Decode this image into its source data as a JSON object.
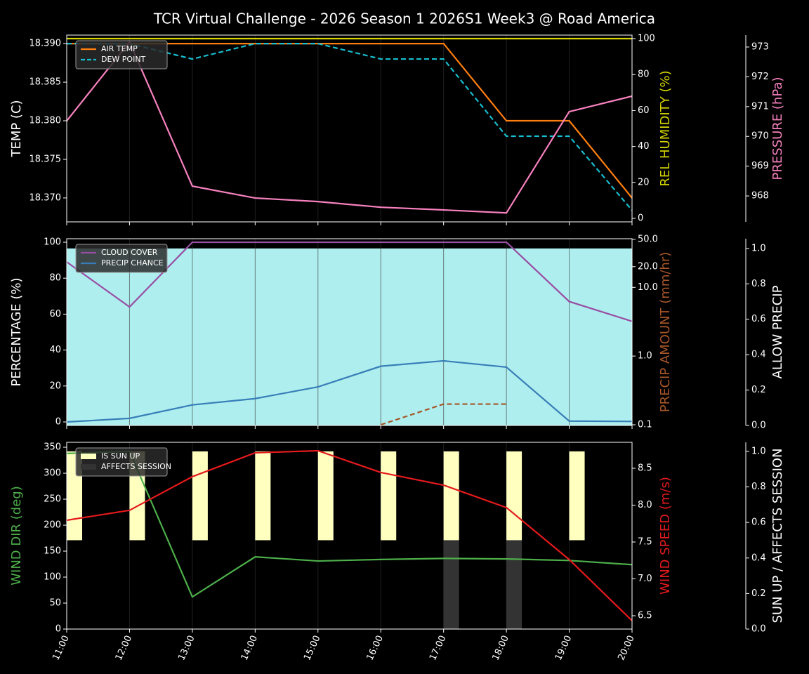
{
  "chart_data": [
    {
      "type": "line",
      "title": "TCR Virtual Challenge - 2026 Season 1 2026S1 Week3 @ Road America",
      "legend": "upper left",
      "axes": [
        {
          "label": "TEMP (C)",
          "side": "left",
          "ylim": [
            18.3669,
            18.3911
          ],
          "yticks": [
            {
              "value": 18.37,
              "label": "18.370"
            },
            18.375,
            {
              "value": 18.38,
              "label": "18.380"
            },
            18.385,
            {
              "value": 18.39,
              "label": "18.390"
            }
          ]
        },
        {
          "label": "REL HUMIDITY (%)",
          "side": "right",
          "color": "#d4d400",
          "ylim": [
            -1.95,
            101.95
          ],
          "yticks": [
            0,
            20,
            40,
            60,
            80,
            100
          ]
        },
        {
          "label": "PRESSURE (hPa)",
          "side": "outer",
          "color": "#f781bf",
          "ylim": [
            967.13,
            973.4
          ],
          "yticks": [
            968,
            969,
            970,
            971,
            972,
            973
          ]
        }
      ],
      "series": [
        {
          "name": "AIR TEMP",
          "color": "#ff7f0e",
          "axis": 0,
          "values": [
            18.39,
            18.39,
            18.39,
            18.39,
            18.39,
            18.39,
            18.39,
            18.38,
            18.38,
            18.37
          ]
        },
        {
          "name": "DEW POINT",
          "color": "#17becf",
          "axis": 0,
          "linestyle": "dashed",
          "values": [
            18.39,
            18.39,
            18.388,
            18.39,
            18.39,
            18.388,
            18.388,
            18.378,
            18.378,
            18.3684
          ]
        },
        {
          "color": "#d4d400",
          "axis": 1,
          "values": [
            100,
            100,
            100,
            100,
            100,
            100,
            100,
            100,
            100,
            100
          ]
        },
        {
          "color": "#f781bf",
          "axis": 2,
          "values": [
            970.52,
            973.17,
            968.33,
            967.93,
            967.81,
            967.62,
            967.53,
            967.43,
            970.83,
            971.35
          ]
        }
      ]
    },
    {
      "type": "line",
      "legend": "upper left",
      "axes": [
        {
          "label": "PERCENTAGE (%)",
          "side": "left",
          "ylim": [
            -1.95,
            101.95
          ],
          "yticks": [
            0,
            20,
            40,
            60,
            80,
            100
          ]
        },
        {
          "label": "PRECIP AMOUNT (mm/hr)",
          "side": "right",
          "color": "#a65628",
          "log": true,
          "ylim": [
            0.0977,
            51
          ],
          "yticks": [
            0.1,
            {
              "value": 1,
              "label": "1.0"
            },
            {
              "value": 10,
              "label": "10.0"
            },
            {
              "value": 20,
              "label": "20.0"
            },
            {
              "value": 50,
              "label": "50.0"
            }
          ]
        },
        {
          "label": "ALLOW PRECIP",
          "side": "outer",
          "ylim": [
            0,
            1.055
          ],
          "yticks": [
            {
              "value": 0,
              "label": "0.0"
            },
            0.2,
            0.4,
            0.6,
            0.8,
            {
              "value": 1,
              "label": "1.0"
            }
          ]
        }
      ],
      "series": [
        {
          "color": "#afeeee",
          "axis": 2,
          "kind": "area",
          "values": [
            1,
            1,
            1,
            1,
            1,
            1,
            1,
            1,
            1,
            1
          ]
        },
        {
          "name": "CLOUD COVER",
          "color": "#984ea3",
          "axis": 0,
          "values": [
            89,
            64,
            100,
            100,
            100,
            100,
            100,
            100,
            67,
            56
          ]
        },
        {
          "name": "PRECIP CHANCE",
          "color": "#377eb8",
          "axis": 0,
          "values": [
            0,
            2,
            9.5,
            13,
            19.5,
            31,
            34,
            30.5,
            0.5,
            0.3
          ]
        },
        {
          "color": "#a65628",
          "axis": 1,
          "linestyle": "dashed",
          "values": [
            null,
            null,
            null,
            null,
            null,
            0.1,
            0.2,
            0.2,
            null,
            null
          ]
        }
      ]
    },
    {
      "type": "line",
      "legend": "upper left",
      "categories": [
        "11:00",
        "12:00",
        "13:00",
        "14:00",
        "15:00",
        "16:00",
        "17:00",
        "18:00",
        "19:00",
        "20:00"
      ],
      "axes": [
        {
          "label": "WIND DIR (deg)",
          "side": "left",
          "color": "#4daf4a",
          "ylim": [
            0,
            359.5
          ],
          "yticks": [
            0,
            50,
            100,
            150,
            200,
            250,
            300,
            350
          ]
        },
        {
          "label": "WIND SPEED (m/s)",
          "side": "right",
          "color": "#e41a1c",
          "ylim": [
            6.319,
            8.852
          ],
          "yticks": [
            6.5,
            {
              "value": 7,
              "label": "7.0"
            },
            7.5,
            {
              "value": 8,
              "label": "8.0"
            },
            8.5
          ]
        },
        {
          "label": "SUN UP / AFFECTS SESSION",
          "side": "outer",
          "ylim": [
            0,
            1.051
          ],
          "yticks": [
            {
              "value": 0,
              "label": "0.0"
            },
            0.2,
            0.4,
            0.6,
            0.8,
            {
              "value": 1,
              "label": "1.0"
            }
          ]
        }
      ],
      "series": [
        {
          "name": "IS SUN UP",
          "color": "#ffffc0",
          "axis": 2,
          "kind": "bar",
          "values": [
            1,
            1,
            1,
            1,
            1,
            1,
            1,
            1,
            1,
            0
          ]
        },
        {
          "name": "AFFECTS SESSION",
          "color": "#333333",
          "axis": 2,
          "kind": "bar",
          "values": [
            0,
            0,
            0,
            0,
            0,
            0,
            0.5,
            0.5,
            0,
            0
          ]
        },
        {
          "color": "#4daf4a",
          "axis": 0,
          "values": [
            338,
            342,
            62,
            139,
            131,
            134,
            136,
            135,
            132,
            124
          ]
        },
        {
          "color": "#e41a1c",
          "axis": 1,
          "values": [
            7.795,
            7.93,
            8.386,
            8.71,
            8.738,
            8.443,
            8.271,
            7.967,
            7.262,
            6.433
          ]
        }
      ]
    }
  ]
}
